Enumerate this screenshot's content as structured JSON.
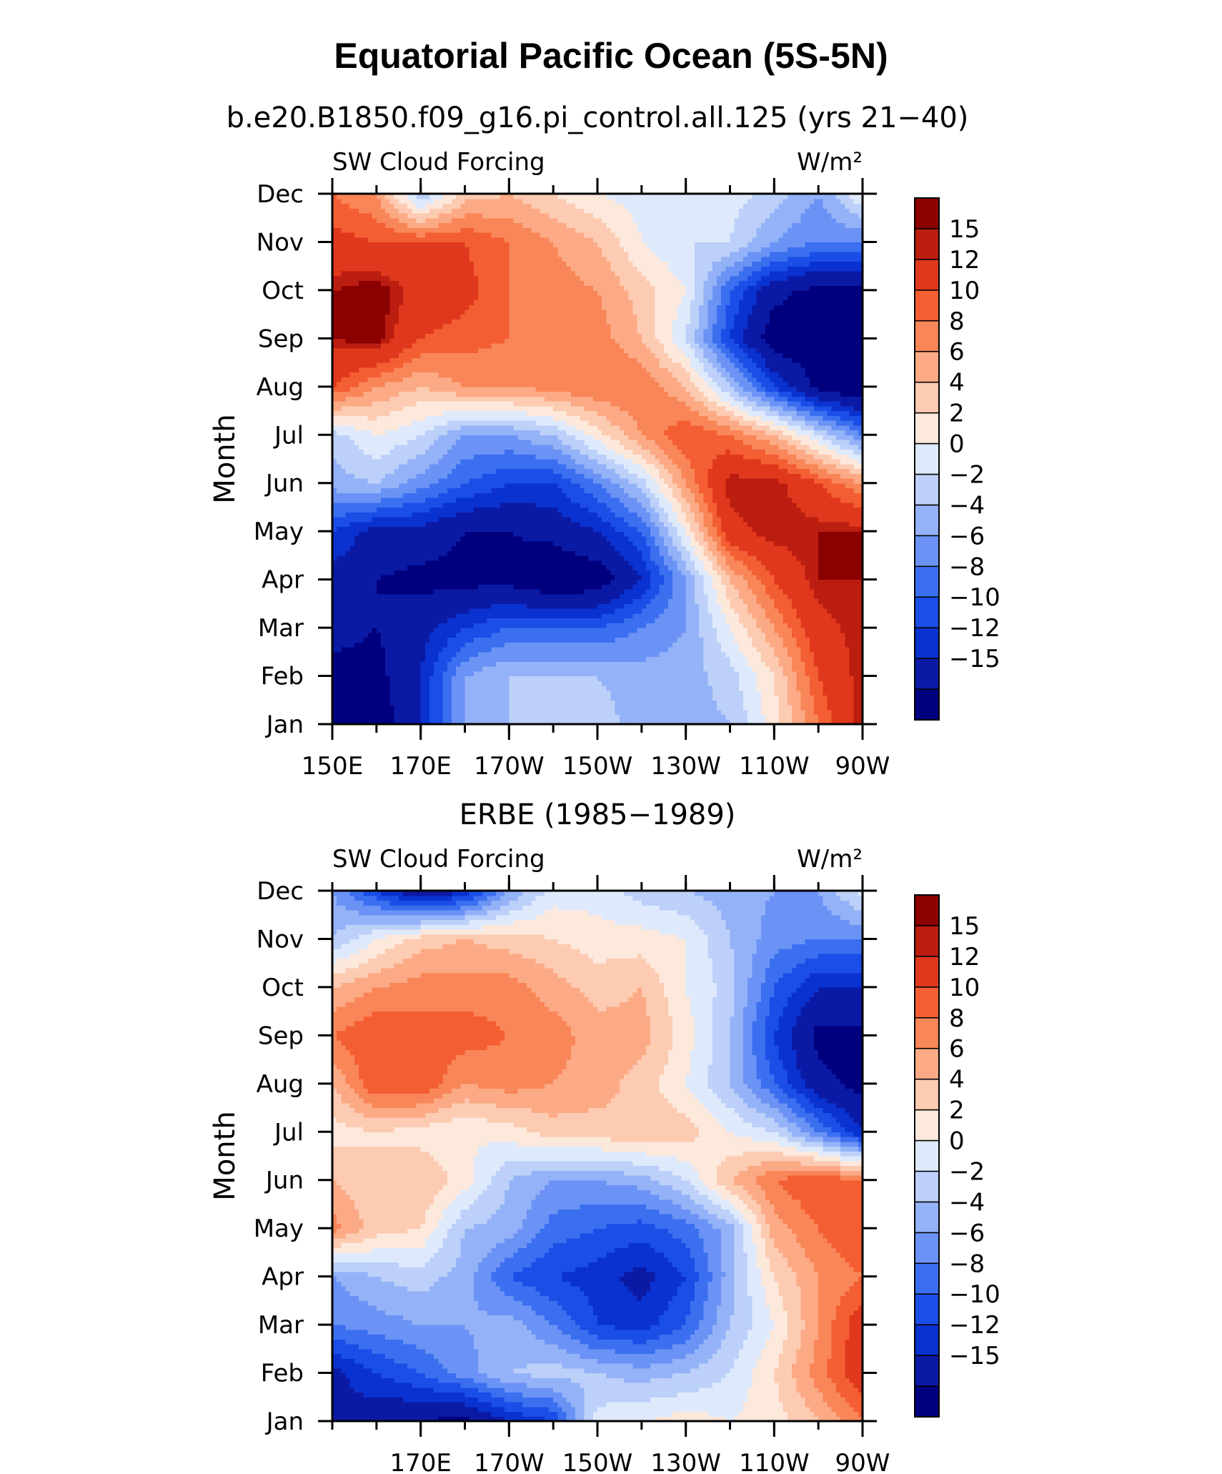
{
  "page": {
    "title": "Equatorial Pacific Ocean (5S-5N)"
  },
  "palette": [
    "#00007f",
    "#0b1aa5",
    "#0a32d0",
    "#1a4ee6",
    "#3b6ff0",
    "#6b93f5",
    "#94b2f7",
    "#bcd0f9",
    "#deeafc",
    "#fde8dc",
    "#fccbb2",
    "#fcaa85",
    "#f98658",
    "#f45e33",
    "#e0381d",
    "#bb1d10",
    "#8b0000"
  ],
  "chart_data": [
    {
      "type": "heatmap",
      "subtitle": "b.e20.B1850.f09_g16.pi_control.all.125 (yrs 21−40)",
      "left_label": "SW Cloud Forcing",
      "right_label": "W/m²",
      "ylabel": "Month",
      "x_tick_labels": [
        "150E",
        "170E",
        "170W",
        "150W",
        "130W",
        "110W",
        "90W"
      ],
      "y_tick_labels": [
        "Jan",
        "Feb",
        "Mar",
        "Apr",
        "May",
        "Jun",
        "Jul",
        "Aug",
        "Sep",
        "Oct",
        "Nov",
        "Dec"
      ],
      "xlim": [
        150,
        270
      ],
      "x_tick_values": [
        150,
        170,
        190,
        210,
        230,
        250,
        270
      ],
      "x_unit": "degrees longitude east",
      "y_unit": "month (Jan=0, Dec=11)",
      "colorbar_labels": [
        "15",
        "12",
        "10",
        "8",
        "6",
        "4",
        "2",
        "0",
        "−2",
        "−4",
        "−6",
        "−8",
        "−10",
        "−12",
        "−15"
      ],
      "levels": [
        -16,
        -15,
        -12,
        -10,
        -8,
        -6,
        -4,
        -2,
        0,
        2,
        4,
        6,
        8,
        10,
        12,
        15,
        16
      ],
      "field_x": [
        150,
        160,
        170,
        180,
        190,
        200,
        210,
        220,
        230,
        240,
        250,
        260,
        270
      ],
      "field_values": [
        [
          -17,
          -17,
          -12,
          -4,
          -2,
          0,
          -1,
          -3,
          -3,
          -2,
          3,
          10,
          16
        ],
        [
          -16,
          -16,
          -12,
          -4,
          -2,
          -2,
          -2,
          -3,
          -3,
          -1,
          4,
          12,
          16
        ],
        [
          -14,
          -15,
          -13,
          -10,
          -8,
          -8,
          -8,
          -6,
          -4,
          2,
          8,
          14,
          16
        ],
        [
          -13,
          -15,
          -16,
          -16,
          -16,
          -18,
          -17,
          -12,
          -4,
          6,
          12,
          16,
          16
        ],
        [
          -10,
          -13,
          -13,
          -15,
          -15,
          -14,
          -12,
          -8,
          2,
          14,
          16,
          16,
          16
        ],
        [
          -3,
          -2,
          -5,
          -8,
          -10,
          -10,
          -6,
          -1,
          8,
          16,
          16,
          12,
          8
        ],
        [
          -1,
          2,
          0,
          -4,
          -4,
          -2,
          3,
          8,
          12,
          10,
          6,
          0,
          -6
        ],
        [
          12,
          8,
          6,
          8,
          8,
          9,
          10,
          10,
          6,
          -2,
          -10,
          -16,
          -18
        ],
        [
          16,
          17,
          12,
          11,
          10,
          10,
          9,
          6,
          0,
          -10,
          -17,
          -17,
          -17
        ],
        [
          16,
          17,
          14,
          13,
          10,
          9,
          8,
          5,
          2,
          -8,
          -14,
          -16,
          -16
        ],
        [
          13,
          12,
          12,
          12,
          10,
          8,
          6,
          2,
          0,
          0,
          -4,
          -6,
          -6
        ],
        [
          10,
          8,
          -2,
          5,
          6,
          4,
          2,
          1,
          0,
          1,
          -1,
          -4,
          2
        ]
      ]
    },
    {
      "type": "heatmap",
      "subtitle": "ERBE (1985−1989)",
      "left_label": "SW Cloud Forcing",
      "right_label": "W/m²",
      "ylabel": "Month",
      "x_tick_labels": [
        "170E",
        "170W",
        "150W",
        "130W",
        "110W",
        "90W"
      ],
      "y_tick_labels": [
        "Jan",
        "Feb",
        "Mar",
        "Apr",
        "May",
        "Jun",
        "Jul",
        "Aug",
        "Sep",
        "Oct",
        "Nov",
        "Dec"
      ],
      "xlim": [
        150,
        270
      ],
      "x_tick_values": [
        170,
        190,
        210,
        230,
        250,
        270
      ],
      "x_unit": "degrees longitude east",
      "y_unit": "month (Jan=0, Dec=11)",
      "colorbar_labels": [
        "15",
        "12",
        "10",
        "8",
        "6",
        "4",
        "2",
        "0",
        "−2",
        "−4",
        "−6",
        "−8",
        "−10",
        "−12",
        "−15"
      ],
      "levels": [
        -16,
        -15,
        -12,
        -10,
        -8,
        -6,
        -4,
        -2,
        0,
        2,
        4,
        6,
        8,
        10,
        12,
        15,
        16
      ],
      "field_x": [
        150,
        160,
        170,
        180,
        190,
        200,
        210,
        220,
        230,
        240,
        250,
        260,
        270
      ],
      "field_values": [
        [
          -12,
          -14,
          -15,
          -16,
          -12,
          -10,
          1,
          2,
          3,
          2,
          3,
          6,
          10
        ],
        [
          -13,
          -10,
          -8,
          -5,
          -2,
          -1,
          -2,
          -3,
          -2,
          0,
          4,
          9,
          14
        ],
        [
          -6,
          -5,
          -4,
          -4,
          -3,
          -6,
          -10,
          -11,
          -8,
          -2,
          2,
          8,
          14
        ],
        [
          -4,
          -2,
          -1,
          -3,
          -8,
          -10,
          -11,
          -13,
          -10,
          -3,
          4,
          8,
          10
        ],
        [
          9,
          5,
          4,
          -2,
          -3,
          -7,
          -8,
          -9,
          -7,
          -3,
          7,
          10,
          12
        ],
        [
          6,
          4,
          6,
          3,
          -2,
          -4,
          -4,
          -3,
          0,
          6,
          10,
          12,
          10
        ],
        [
          3,
          4,
          3,
          2,
          3,
          5,
          5,
          6,
          5,
          2,
          0,
          -6,
          -12
        ],
        [
          6,
          12,
          12,
          8,
          9,
          8,
          7,
          5,
          2,
          -2,
          -8,
          -14,
          -16
        ],
        [
          10,
          12,
          11,
          11,
          10,
          9,
          7,
          7,
          3,
          -2,
          -10,
          -16,
          -16
        ],
        [
          6,
          8,
          9,
          9,
          9,
          7,
          5,
          6,
          2,
          -1,
          -8,
          -12,
          -12
        ],
        [
          -2,
          2,
          5,
          6,
          5,
          4,
          3,
          3,
          2,
          -2,
          -5,
          -6,
          -6
        ],
        [
          -4,
          -10,
          -15,
          -12,
          -4,
          1,
          1,
          -1,
          -2,
          -3,
          -4,
          -4,
          1
        ]
      ]
    }
  ]
}
